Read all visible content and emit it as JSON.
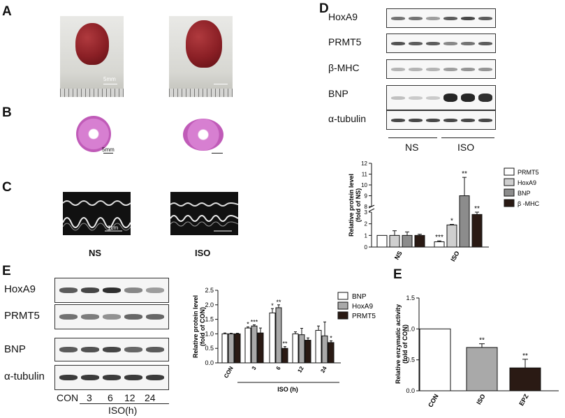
{
  "panels": {
    "a": "A",
    "b": "B",
    "c": "C",
    "d": "D",
    "e1": "E",
    "e2": "E"
  },
  "scale_labels": {
    "a": "5mm",
    "b": "5mm",
    "c": "1cm"
  },
  "groups_c": {
    "ns": "NS",
    "iso": "ISO"
  },
  "d_blot": {
    "rows": [
      "HoxA9",
      "PRMT5",
      "β-MHC",
      "BNP",
      "α-tubulin"
    ],
    "groups": [
      "NS",
      "ISO"
    ]
  },
  "e_blot": {
    "rows": [
      "HoxA9",
      "PRMT5",
      "BNP",
      "α-tubulin"
    ],
    "lanes": [
      "CON",
      "3",
      "6",
      "12",
      "24"
    ],
    "group": "ISO(h)"
  },
  "chart_data": [
    {
      "type": "bar",
      "panel": "D",
      "categories": [
        "NS",
        "ISO"
      ],
      "ylabel": "Relative protein level\n(fold of NS)",
      "ylim": [
        0,
        12
      ],
      "axis_break": [
        3,
        8
      ],
      "yticks": [
        "0",
        "1",
        "2",
        "3",
        "8",
        "9",
        "10",
        "11",
        "12"
      ],
      "series": [
        {
          "name": "PRMT5",
          "values": [
            1.0,
            0.45
          ],
          "errors": [
            0.0,
            0.08
          ],
          "sig": [
            "",
            "***"
          ],
          "color": "#ffffff"
        },
        {
          "name": "HoxA9",
          "values": [
            1.0,
            1.9
          ],
          "errors": [
            0.4,
            0.05
          ],
          "sig": [
            "",
            "*"
          ],
          "color": "#cfcfcf"
        },
        {
          "name": "BNP",
          "values": [
            1.0,
            9.0
          ],
          "errors": [
            0.3,
            1.7
          ],
          "sig": [
            "",
            "**"
          ],
          "color": "#8c8c8c"
        },
        {
          "name": "β -MHC",
          "values": [
            1.0,
            2.8
          ],
          "errors": [
            0.1,
            0.2
          ],
          "sig": [
            "",
            "**"
          ],
          "color": "#2a1a14"
        }
      ]
    },
    {
      "type": "bar",
      "panel": "E",
      "categories": [
        "CON",
        "3",
        "6",
        "12",
        "24"
      ],
      "xgroup": "ISO (h)",
      "ylabel": "Relative protein level\n(fold of CON)",
      "ylim": [
        0,
        2.5
      ],
      "yticks": [
        "0.0",
        "0.5",
        "1.0",
        "1.5",
        "2.0",
        "2.5"
      ],
      "series": [
        {
          "name": "BNP",
          "values": [
            1.0,
            1.2,
            1.72,
            1.0,
            1.12
          ],
          "errors": [
            0.03,
            0.04,
            0.15,
            0.07,
            0.15
          ],
          "sig": [
            "",
            "*",
            "*",
            "",
            ""
          ],
          "color": "#ffffff"
        },
        {
          "name": "HoxA9",
          "values": [
            1.0,
            1.27,
            1.9,
            0.97,
            0.93
          ],
          "errors": [
            0.02,
            0.04,
            0.1,
            0.22,
            0.48
          ],
          "sig": [
            "",
            "***",
            "**",
            "",
            ""
          ],
          "color": "#a9a9a9"
        },
        {
          "name": "PRMT5",
          "values": [
            1.0,
            1.03,
            0.5,
            0.78,
            0.7
          ],
          "errors": [
            0.02,
            0.17,
            0.06,
            0.08,
            0.06
          ],
          "sig": [
            "",
            "",
            "**",
            "",
            "*"
          ],
          "color": "#2a1a14"
        }
      ]
    },
    {
      "type": "bar",
      "panel": "E",
      "categories": [
        "CON",
        "ISO",
        "EPZ"
      ],
      "ylabel": "Relative enzymatic activity\n(fold of CON)",
      "ylim": [
        0,
        1.5
      ],
      "yticks": [
        "0.0",
        "0.5",
        "1.0",
        "1.5"
      ],
      "values": [
        1.0,
        0.7,
        0.37
      ],
      "errors": [
        0.0,
        0.06,
        0.14
      ],
      "sig": [
        "",
        "**",
        "**"
      ],
      "colors": [
        "#ffffff",
        "#a9a9a9",
        "#2a1a14"
      ]
    }
  ]
}
